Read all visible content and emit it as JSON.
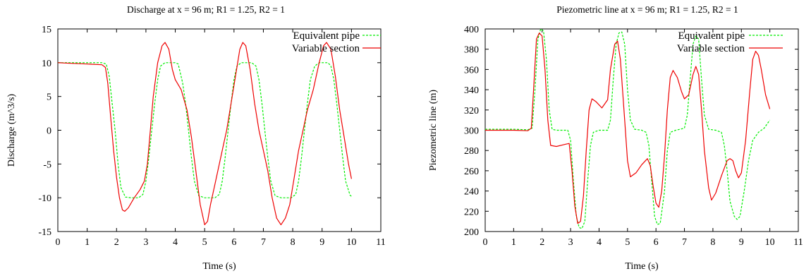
{
  "chart_data": [
    {
      "type": "line",
      "title": "Discharge at x = 96 m; R1 = 1.25, R2 = 1",
      "xlabel": "Time (s)",
      "ylabel": "Discharge (m^3/s)",
      "xlim": [
        0,
        11
      ],
      "ylim": [
        -15,
        15
      ],
      "xticks": [
        0,
        1,
        2,
        3,
        4,
        5,
        6,
        7,
        8,
        9,
        10,
        11
      ],
      "yticks": [
        -15,
        -10,
        -5,
        0,
        5,
        10,
        15
      ],
      "grid": false,
      "legend_position": "top-right",
      "series": [
        {
          "name": "Equivalent pipe",
          "color": "#00ee00",
          "dash": "dashed",
          "points": [
            [
              0,
              10
            ],
            [
              0.5,
              10
            ],
            [
              1,
              10
            ],
            [
              1.5,
              10
            ],
            [
              1.65,
              9.8
            ],
            [
              1.75,
              8
            ],
            [
              1.85,
              4
            ],
            [
              1.95,
              0
            ],
            [
              2.05,
              -5
            ],
            [
              2.15,
              -8.5
            ],
            [
              2.3,
              -9.9
            ],
            [
              2.5,
              -10
            ],
            [
              2.75,
              -10
            ],
            [
              2.9,
              -9.5
            ],
            [
              3.0,
              -7.5
            ],
            [
              3.1,
              -4
            ],
            [
              3.2,
              0
            ],
            [
              3.3,
              4
            ],
            [
              3.4,
              7.5
            ],
            [
              3.5,
              9.5
            ],
            [
              3.65,
              10
            ],
            [
              4.0,
              10
            ],
            [
              4.1,
              9.8
            ],
            [
              4.25,
              7
            ],
            [
              4.35,
              4
            ],
            [
              4.45,
              0
            ],
            [
              4.55,
              -4
            ],
            [
              4.65,
              -7.5
            ],
            [
              4.8,
              -9.7
            ],
            [
              5.0,
              -10
            ],
            [
              5.35,
              -10
            ],
            [
              5.5,
              -9.5
            ],
            [
              5.6,
              -7.5
            ],
            [
              5.7,
              -4
            ],
            [
              5.8,
              0
            ],
            [
              5.9,
              4
            ],
            [
              6.0,
              7.5
            ],
            [
              6.1,
              9.5
            ],
            [
              6.25,
              10
            ],
            [
              6.6,
              10
            ],
            [
              6.75,
              9.5
            ],
            [
              6.85,
              7.5
            ],
            [
              6.95,
              4
            ],
            [
              7.05,
              0
            ],
            [
              7.15,
              -4
            ],
            [
              7.25,
              -7.5
            ],
            [
              7.4,
              -9.7
            ],
            [
              7.6,
              -10
            ],
            [
              7.95,
              -10
            ],
            [
              8.1,
              -9.5
            ],
            [
              8.2,
              -7.5
            ],
            [
              8.3,
              -4
            ],
            [
              8.4,
              0
            ],
            [
              8.5,
              4
            ],
            [
              8.6,
              7.5
            ],
            [
              8.75,
              9.5
            ],
            [
              8.9,
              10
            ],
            [
              9.2,
              10
            ],
            [
              9.3,
              9.5
            ],
            [
              9.4,
              7.5
            ],
            [
              9.5,
              4
            ],
            [
              9.6,
              0
            ],
            [
              9.7,
              -4
            ],
            [
              9.8,
              -7.5
            ],
            [
              9.95,
              -9.6
            ],
            [
              10,
              -9.8
            ]
          ]
        },
        {
          "name": "Variable section",
          "color": "#ee0000",
          "dash": "solid",
          "points": [
            [
              0,
              10
            ],
            [
              0.5,
              9.9
            ],
            [
              1.0,
              9.8
            ],
            [
              1.5,
              9.7
            ],
            [
              1.62,
              9.3
            ],
            [
              1.7,
              7
            ],
            [
              1.8,
              2
            ],
            [
              1.9,
              -3
            ],
            [
              2.0,
              -7
            ],
            [
              2.1,
              -10
            ],
            [
              2.2,
              -11.8
            ],
            [
              2.28,
              -12
            ],
            [
              2.4,
              -11.5
            ],
            [
              2.6,
              -10
            ],
            [
              2.8,
              -8.8
            ],
            [
              2.95,
              -7.5
            ],
            [
              3.05,
              -5
            ],
            [
              3.15,
              0
            ],
            [
              3.25,
              5
            ],
            [
              3.4,
              10
            ],
            [
              3.55,
              12.5
            ],
            [
              3.65,
              13
            ],
            [
              3.78,
              12
            ],
            [
              3.9,
              9
            ],
            [
              4.0,
              7.5
            ],
            [
              4.2,
              6
            ],
            [
              4.4,
              3
            ],
            [
              4.55,
              -1
            ],
            [
              4.7,
              -6
            ],
            [
              4.85,
              -11
            ],
            [
              5.0,
              -14
            ],
            [
              5.1,
              -13.5
            ],
            [
              5.2,
              -11
            ],
            [
              5.35,
              -8
            ],
            [
              5.5,
              -5
            ],
            [
              5.65,
              -2
            ],
            [
              5.75,
              0
            ],
            [
              5.9,
              4
            ],
            [
              6.05,
              8
            ],
            [
              6.2,
              12
            ],
            [
              6.3,
              13
            ],
            [
              6.4,
              12.5
            ],
            [
              6.55,
              9
            ],
            [
              6.7,
              4
            ],
            [
              6.85,
              0
            ],
            [
              7.0,
              -3
            ],
            [
              7.15,
              -6
            ],
            [
              7.3,
              -10
            ],
            [
              7.45,
              -13
            ],
            [
              7.6,
              -14
            ],
            [
              7.75,
              -13
            ],
            [
              7.9,
              -11
            ],
            [
              8.05,
              -7
            ],
            [
              8.2,
              -3
            ],
            [
              8.35,
              0
            ],
            [
              8.5,
              3
            ],
            [
              8.7,
              6
            ],
            [
              8.9,
              10
            ],
            [
              9.05,
              12.5
            ],
            [
              9.15,
              13
            ],
            [
              9.3,
              12
            ],
            [
              9.45,
              8
            ],
            [
              9.6,
              3
            ],
            [
              9.75,
              -1
            ],
            [
              9.9,
              -5
            ],
            [
              10,
              -7.2
            ]
          ]
        }
      ]
    },
    {
      "type": "line",
      "title": "Piezometric line at x = 96 m; R1 = 1.25, R2 = 1",
      "xlabel": "Time (s)",
      "ylabel": "Piezometric line (m)",
      "xlim": [
        0,
        11
      ],
      "ylim": [
        200,
        400
      ],
      "xticks": [
        0,
        1,
        2,
        3,
        4,
        5,
        6,
        7,
        8,
        9,
        10,
        11
      ],
      "yticks": [
        200,
        220,
        240,
        260,
        280,
        300,
        320,
        340,
        360,
        380,
        400
      ],
      "grid": false,
      "legend_position": "top-right",
      "series": [
        {
          "name": "Equivalent pipe",
          "color": "#00ee00",
          "dash": "dashed",
          "points": [
            [
              0,
              301
            ],
            [
              0.5,
              301
            ],
            [
              1.0,
              301
            ],
            [
              1.5,
              300.5
            ],
            [
              1.65,
              302
            ],
            [
              1.75,
              340
            ],
            [
              1.85,
              390
            ],
            [
              1.95,
              400
            ],
            [
              2.05,
              398
            ],
            [
              2.15,
              370
            ],
            [
              2.25,
              320
            ],
            [
              2.35,
              301
            ],
            [
              2.5,
              300
            ],
            [
              2.9,
              300
            ],
            [
              3.0,
              290
            ],
            [
              3.1,
              250
            ],
            [
              3.2,
              215
            ],
            [
              3.3,
              204
            ],
            [
              3.4,
              203
            ],
            [
              3.5,
              210
            ],
            [
              3.6,
              250
            ],
            [
              3.7,
              285
            ],
            [
              3.8,
              298
            ],
            [
              4.0,
              300
            ],
            [
              4.3,
              300
            ],
            [
              4.4,
              310
            ],
            [
              4.5,
              350
            ],
            [
              4.6,
              385
            ],
            [
              4.7,
              396
            ],
            [
              4.8,
              397
            ],
            [
              4.9,
              385
            ],
            [
              5.0,
              340
            ],
            [
              5.1,
              310
            ],
            [
              5.25,
              301
            ],
            [
              5.5,
              300
            ],
            [
              5.65,
              298
            ],
            [
              5.75,
              285
            ],
            [
              5.85,
              250
            ],
            [
              5.95,
              215
            ],
            [
              6.05,
              207
            ],
            [
              6.15,
              208
            ],
            [
              6.3,
              240
            ],
            [
              6.4,
              280
            ],
            [
              6.5,
              298
            ],
            [
              6.7,
              300
            ],
            [
              7.0,
              302
            ],
            [
              7.1,
              315
            ],
            [
              7.2,
              350
            ],
            [
              7.3,
              385
            ],
            [
              7.4,
              393
            ],
            [
              7.5,
              390
            ],
            [
              7.6,
              350
            ],
            [
              7.7,
              315
            ],
            [
              7.85,
              301
            ],
            [
              8.1,
              300
            ],
            [
              8.3,
              298
            ],
            [
              8.4,
              285
            ],
            [
              8.5,
              260
            ],
            [
              8.6,
              230
            ],
            [
              8.75,
              215
            ],
            [
              8.85,
              212
            ],
            [
              8.95,
              215
            ],
            [
              9.1,
              240
            ],
            [
              9.25,
              270
            ],
            [
              9.4,
              290
            ],
            [
              9.6,
              298
            ],
            [
              9.8,
              302
            ],
            [
              10,
              310
            ]
          ]
        },
        {
          "name": "Variable section",
          "color": "#ee0000",
          "dash": "solid",
          "points": [
            [
              0,
              300
            ],
            [
              0.5,
              300
            ],
            [
              1.0,
              300
            ],
            [
              1.5,
              299.5
            ],
            [
              1.62,
              302
            ],
            [
              1.7,
              340
            ],
            [
              1.8,
              390
            ],
            [
              1.9,
              396
            ],
            [
              2.0,
              393
            ],
            [
              2.1,
              360
            ],
            [
              2.2,
              310
            ],
            [
              2.3,
              285
            ],
            [
              2.5,
              284
            ],
            [
              2.8,
              286
            ],
            [
              2.95,
              287
            ],
            [
              3.05,
              260
            ],
            [
              3.15,
              225
            ],
            [
              3.25,
              208
            ],
            [
              3.35,
              210
            ],
            [
              3.45,
              235
            ],
            [
              3.55,
              280
            ],
            [
              3.65,
              320
            ],
            [
              3.75,
              331
            ],
            [
              3.9,
              328
            ],
            [
              4.1,
              322
            ],
            [
              4.3,
              330
            ],
            [
              4.4,
              360
            ],
            [
              4.55,
              385
            ],
            [
              4.65,
              388
            ],
            [
              4.75,
              370
            ],
            [
              4.9,
              310
            ],
            [
              5.0,
              270
            ],
            [
              5.1,
              254
            ],
            [
              5.3,
              258
            ],
            [
              5.5,
              266
            ],
            [
              5.7,
              272
            ],
            [
              5.8,
              265
            ],
            [
              5.9,
              245
            ],
            [
              6.0,
              228
            ],
            [
              6.1,
              224
            ],
            [
              6.2,
              240
            ],
            [
              6.3,
              275
            ],
            [
              6.4,
              320
            ],
            [
              6.5,
              352
            ],
            [
              6.6,
              359
            ],
            [
              6.75,
              352
            ],
            [
              6.9,
              338
            ],
            [
              7.0,
              331
            ],
            [
              7.15,
              335
            ],
            [
              7.3,
              355
            ],
            [
              7.4,
              363
            ],
            [
              7.5,
              355
            ],
            [
              7.6,
              320
            ],
            [
              7.7,
              280
            ],
            [
              7.85,
              243
            ],
            [
              7.95,
              231
            ],
            [
              8.1,
              238
            ],
            [
              8.3,
              255
            ],
            [
              8.5,
              270
            ],
            [
              8.6,
              272
            ],
            [
              8.7,
              270
            ],
            [
              8.8,
              260
            ],
            [
              8.9,
              253
            ],
            [
              9.0,
              258
            ],
            [
              9.15,
              290
            ],
            [
              9.3,
              340
            ],
            [
              9.4,
              370
            ],
            [
              9.5,
              378
            ],
            [
              9.6,
              374
            ],
            [
              9.7,
              360
            ],
            [
              9.85,
              335
            ],
            [
              10,
              321
            ]
          ]
        }
      ]
    }
  ]
}
